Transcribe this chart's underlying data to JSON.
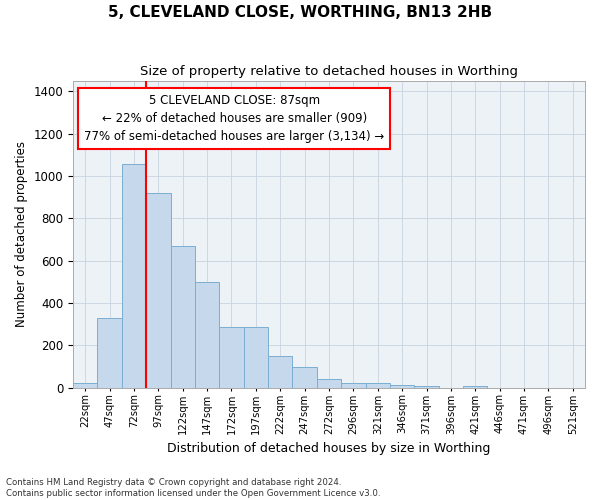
{
  "title": "5, CLEVELAND CLOSE, WORTHING, BN13 2HB",
  "subtitle": "Size of property relative to detached houses in Worthing",
  "xlabel": "Distribution of detached houses by size in Worthing",
  "ylabel": "Number of detached properties",
  "bins": [
    "22sqm",
    "47sqm",
    "72sqm",
    "97sqm",
    "122sqm",
    "147sqm",
    "172sqm",
    "197sqm",
    "222sqm",
    "247sqm",
    "272sqm",
    "296sqm",
    "321sqm",
    "346sqm",
    "371sqm",
    "396sqm",
    "421sqm",
    "446sqm",
    "471sqm",
    "496sqm",
    "521sqm"
  ],
  "values": [
    20,
    330,
    1055,
    920,
    670,
    500,
    285,
    285,
    150,
    100,
    40,
    22,
    22,
    15,
    8,
    0,
    10,
    0,
    0,
    0,
    0
  ],
  "bar_color": "#c6d9ec",
  "bar_edge_color": "#7aaed0",
  "bar_edge_width": 0.7,
  "annotation_text": "5 CLEVELAND CLOSE: 87sqm\n← 22% of detached houses are smaller (909)\n77% of semi-detached houses are larger (3,134) →",
  "ylim": [
    0,
    1450
  ],
  "yticks": [
    0,
    200,
    400,
    600,
    800,
    1000,
    1200,
    1400
  ],
  "grid_color": "#c8d4e0",
  "background_color": "#edf2f7",
  "footer_line1": "Contains HM Land Registry data © Crown copyright and database right 2024.",
  "footer_line2": "Contains public sector information licensed under the Open Government Licence v3.0."
}
